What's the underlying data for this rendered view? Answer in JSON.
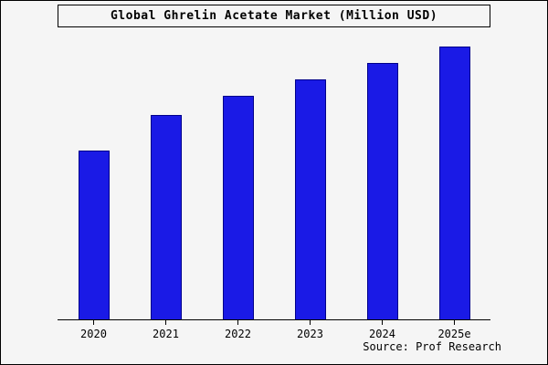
{
  "title": "Global Ghrelin Acetate Market (Million USD)",
  "source": "Source: Prof Research",
  "chart_data": {
    "type": "bar",
    "title": "Global Ghrelin Acetate Market (Million USD)",
    "categories": [
      "2020",
      "2021",
      "2022",
      "2023",
      "2024",
      "2025e"
    ],
    "values": [
      62,
      75,
      82,
      88,
      94,
      100
    ],
    "xlabel": "",
    "ylabel": "",
    "ylim": [
      0,
      100
    ],
    "grid": false,
    "legend": false,
    "bar_color": "#1a1ae6",
    "bar_border_color": "#00008b",
    "background": "#f5f5f5"
  }
}
